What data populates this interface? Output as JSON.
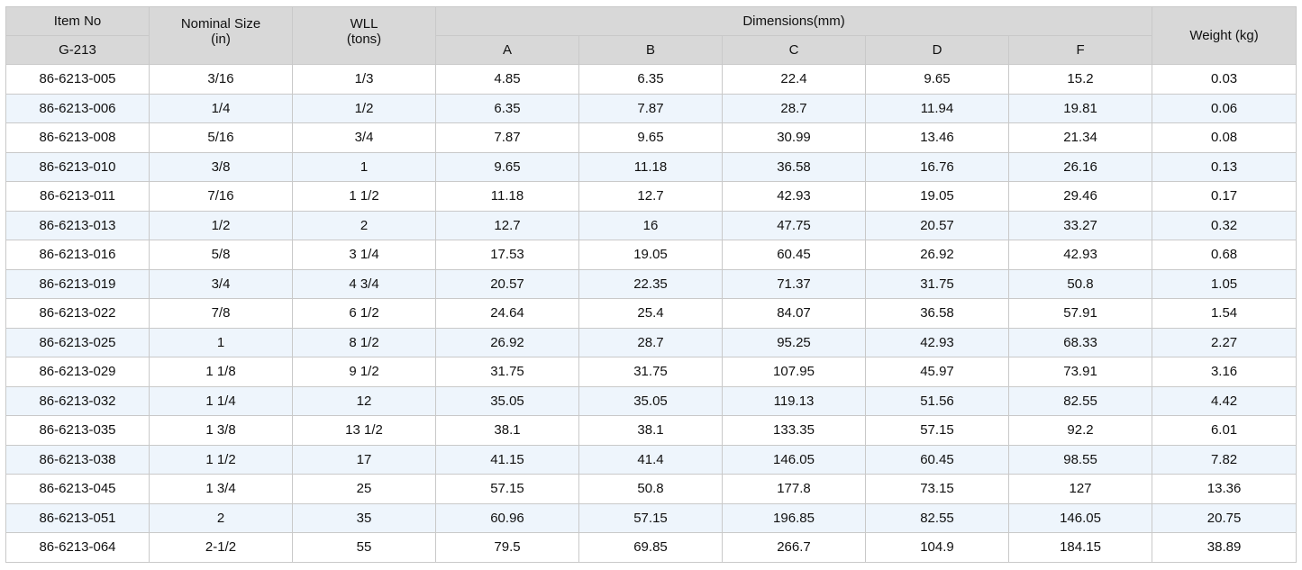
{
  "header": {
    "item_no": "Item No",
    "item_code": "G-213",
    "nominal_size_line1": "Nominal Size",
    "nominal_size_line2": "(in)",
    "wll_line1": "WLL",
    "wll_line2": "(tons)",
    "dimensions": "Dimensions(mm)",
    "dim_cols": [
      "A",
      "B",
      "C",
      "D",
      "F"
    ],
    "weight": "Weight (kg)"
  },
  "rows": [
    [
      "86-6213-005",
      "3/16",
      "1/3",
      "4.85",
      "6.35",
      "22.4",
      "9.65",
      "15.2",
      "0.03"
    ],
    [
      "86-6213-006",
      "1/4",
      "1/2",
      "6.35",
      "7.87",
      "28.7",
      "11.94",
      "19.81",
      "0.06"
    ],
    [
      "86-6213-008",
      "5/16",
      "3/4",
      "7.87",
      "9.65",
      "30.99",
      "13.46",
      "21.34",
      "0.08"
    ],
    [
      "86-6213-010",
      "3/8",
      "1",
      "9.65",
      "11.18",
      "36.58",
      "16.76",
      "26.16",
      "0.13"
    ],
    [
      "86-6213-011",
      "7/16",
      "1 1/2",
      "11.18",
      "12.7",
      "42.93",
      "19.05",
      "29.46",
      "0.17"
    ],
    [
      "86-6213-013",
      "1/2",
      "2",
      "12.7",
      "16",
      "47.75",
      "20.57",
      "33.27",
      "0.32"
    ],
    [
      "86-6213-016",
      "5/8",
      "3 1/4",
      "17.53",
      "19.05",
      "60.45",
      "26.92",
      "42.93",
      "0.68"
    ],
    [
      "86-6213-019",
      "3/4",
      "4 3/4",
      "20.57",
      "22.35",
      "71.37",
      "31.75",
      "50.8",
      "1.05"
    ],
    [
      "86-6213-022",
      "7/8",
      "6 1/2",
      "24.64",
      "25.4",
      "84.07",
      "36.58",
      "57.91",
      "1.54"
    ],
    [
      "86-6213-025",
      "1",
      "8 1/2",
      "26.92",
      "28.7",
      "95.25",
      "42.93",
      "68.33",
      "2.27"
    ],
    [
      "86-6213-029",
      "1 1/8",
      "9 1/2",
      "31.75",
      "31.75",
      "107.95",
      "45.97",
      "73.91",
      "3.16"
    ],
    [
      "86-6213-032",
      "1 1/4",
      "12",
      "35.05",
      "35.05",
      "119.13",
      "51.56",
      "82.55",
      "4.42"
    ],
    [
      "86-6213-035",
      "1 3/8",
      "13 1/2",
      "38.1",
      "38.1",
      "133.35",
      "57.15",
      "92.2",
      "6.01"
    ],
    [
      "86-6213-038",
      "1 1/2",
      "17",
      "41.15",
      "41.4",
      "146.05",
      "60.45",
      "98.55",
      "7.82"
    ],
    [
      "86-6213-045",
      "1 3/4",
      "25",
      "57.15",
      "50.8",
      "177.8",
      "73.15",
      "127",
      "13.36"
    ],
    [
      "86-6213-051",
      "2",
      "35",
      "60.96",
      "57.15",
      "196.85",
      "82.55",
      "146.05",
      "20.75"
    ],
    [
      "86-6213-064",
      "2-1/2",
      "55",
      "79.5",
      "69.85",
      "266.7",
      "104.9",
      "184.15",
      "38.89"
    ]
  ]
}
